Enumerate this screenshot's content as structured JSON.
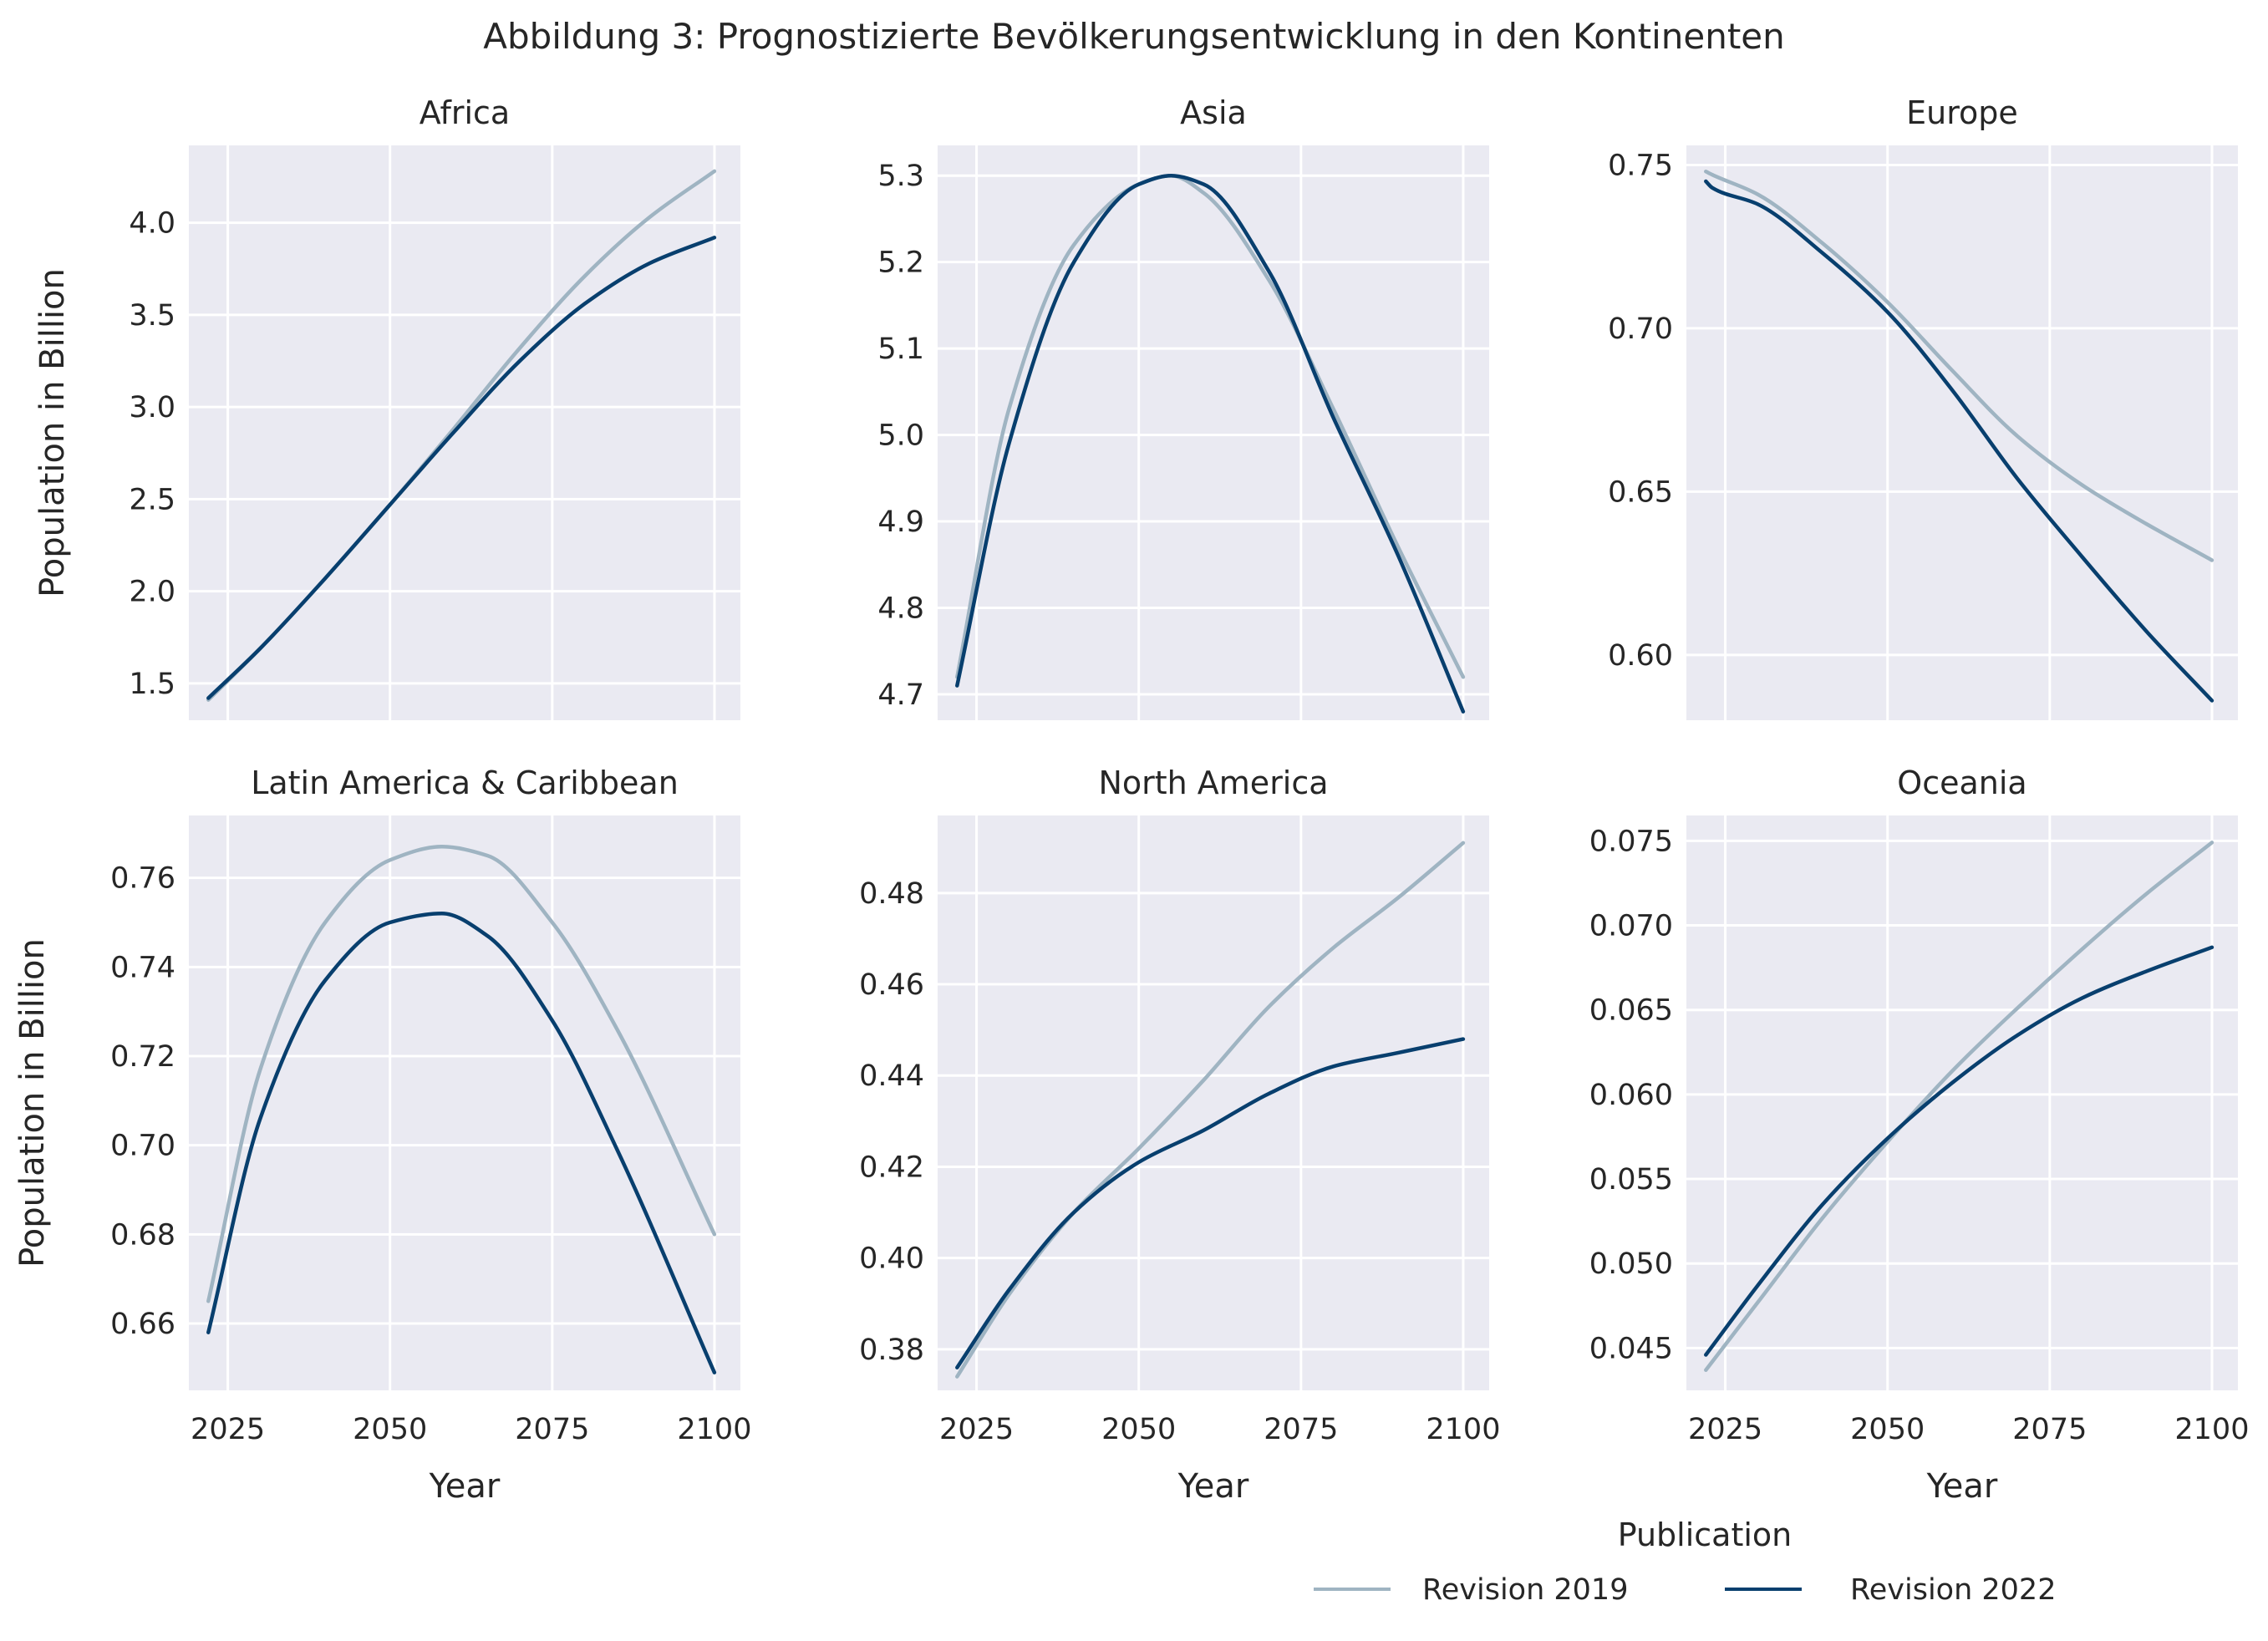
{
  "title": "Abbildung 3: Prognostizierte Bevölkerungsentwicklung in den Kontinenten",
  "colors": {
    "panel_bg": "#EAEAF2",
    "grid": "#FFFFFF",
    "revision_2019": "#9FB4C2",
    "revision_2022": "#083F6E",
    "text": "#262626"
  },
  "legend": {
    "title": "Publication",
    "entries": [
      "Revision 2019",
      "Revision 2022"
    ]
  },
  "chart_data": [
    {
      "type": "line",
      "title": "Africa",
      "xlabel": "",
      "ylabel": "Population in Billion",
      "xlim": [
        2019,
        2104
      ],
      "ylim": [
        1.3,
        4.42
      ],
      "xticks": [
        2025,
        2050,
        2075,
        2100
      ],
      "yticks": [
        1.5,
        2.0,
        2.5,
        3.0,
        3.5,
        4.0
      ],
      "ytick_labels": [
        "1.5",
        "2.0",
        "2.5",
        "3.0",
        "3.5",
        "4.0"
      ],
      "x": [
        2022,
        2030,
        2040,
        2050,
        2060,
        2070,
        2080,
        2090,
        2100
      ],
      "series": [
        {
          "name": "Revision 2019",
          "values": [
            1.41,
            1.69,
            2.07,
            2.47,
            2.89,
            3.32,
            3.71,
            4.03,
            4.28
          ]
        },
        {
          "name": "Revision 2022",
          "values": [
            1.42,
            1.69,
            2.07,
            2.47,
            2.87,
            3.25,
            3.56,
            3.78,
            3.92
          ]
        }
      ]
    },
    {
      "type": "line",
      "title": "Asia",
      "xlabel": "",
      "ylabel": "",
      "xlim": [
        2019,
        2104
      ],
      "ylim": [
        4.67,
        5.335
      ],
      "xticks": [
        2025,
        2050,
        2075,
        2100
      ],
      "yticks": [
        4.7,
        4.8,
        4.9,
        5.0,
        5.1,
        5.2,
        5.3
      ],
      "ytick_labels": [
        "4.7",
        "4.8",
        "4.9",
        "5.0",
        "5.1",
        "5.2",
        "5.3"
      ],
      "x": [
        2022,
        2030,
        2040,
        2050,
        2055,
        2060,
        2070,
        2080,
        2090,
        2100
      ],
      "series": [
        {
          "name": "Revision 2019",
          "values": [
            4.72,
            5.03,
            5.22,
            5.29,
            5.3,
            5.28,
            5.18,
            5.03,
            4.87,
            4.72
          ]
        },
        {
          "name": "Revision 2022",
          "values": [
            4.71,
            4.99,
            5.2,
            5.29,
            5.3,
            5.29,
            5.19,
            5.02,
            4.86,
            4.68
          ]
        }
      ]
    },
    {
      "type": "line",
      "title": "Europe",
      "xlabel": "",
      "ylabel": "",
      "xlim": [
        2019,
        2104
      ],
      "ylim": [
        0.58,
        0.756
      ],
      "xticks": [
        2025,
        2050,
        2075,
        2100
      ],
      "yticks": [
        0.6,
        0.65,
        0.7,
        0.75
      ],
      "ytick_labels": [
        "0.60",
        "0.65",
        "0.70",
        "0.75"
      ],
      "x": [
        2022,
        2023,
        2030,
        2040,
        2050,
        2060,
        2070,
        2080,
        2090,
        2100
      ],
      "series": [
        {
          "name": "Revision 2019",
          "values": [
            0.748,
            0.747,
            0.741,
            0.726,
            0.708,
            0.687,
            0.667,
            0.652,
            0.64,
            0.629
          ]
        },
        {
          "name": "Revision 2022",
          "values": [
            0.745,
            0.743,
            0.738,
            0.723,
            0.705,
            0.681,
            0.654,
            0.63,
            0.607,
            0.586
          ]
        }
      ]
    },
    {
      "type": "line",
      "title": "Latin America & Caribbean",
      "xlabel": "Year",
      "ylabel": "Population in Billion",
      "xlim": [
        2019,
        2104
      ],
      "ylim": [
        0.645,
        0.774
      ],
      "xticks": [
        2025,
        2050,
        2075,
        2100
      ],
      "yticks": [
        0.66,
        0.68,
        0.7,
        0.72,
        0.74,
        0.76
      ],
      "ytick_labels": [
        "0.66",
        "0.68",
        "0.70",
        "0.72",
        "0.74",
        "0.76"
      ],
      "xtick_labels": [
        "2025",
        "2050",
        "2075",
        "2100"
      ],
      "x": [
        2022,
        2030,
        2040,
        2050,
        2058,
        2065,
        2075,
        2085,
        2100
      ],
      "series": [
        {
          "name": "Revision 2019",
          "values": [
            0.665,
            0.717,
            0.75,
            0.764,
            0.767,
            0.765,
            0.75,
            0.726,
            0.68
          ]
        },
        {
          "name": "Revision 2022",
          "values": [
            0.658,
            0.706,
            0.737,
            0.75,
            0.752,
            0.747,
            0.728,
            0.699,
            0.649
          ]
        }
      ]
    },
    {
      "type": "line",
      "title": "North America",
      "xlabel": "Year",
      "ylabel": "",
      "xlim": [
        2019,
        2104
      ],
      "ylim": [
        0.371,
        0.497
      ],
      "xticks": [
        2025,
        2050,
        2075,
        2100
      ],
      "yticks": [
        0.38,
        0.4,
        0.42,
        0.44,
        0.46,
        0.48
      ],
      "ytick_labels": [
        "0.38",
        "0.40",
        "0.42",
        "0.44",
        "0.46",
        "0.48"
      ],
      "xtick_labels": [
        "2025",
        "2050",
        "2075",
        "2100"
      ],
      "x": [
        2022,
        2030,
        2040,
        2050,
        2060,
        2070,
        2080,
        2090,
        2100
      ],
      "series": [
        {
          "name": "Revision 2019",
          "values": [
            0.374,
            0.392,
            0.41,
            0.424,
            0.439,
            0.455,
            0.468,
            0.479,
            0.491
          ]
        },
        {
          "name": "Revision 2022",
          "values": [
            0.376,
            0.393,
            0.41,
            0.421,
            0.428,
            0.436,
            0.442,
            0.445,
            0.448
          ]
        }
      ]
    },
    {
      "type": "line",
      "title": "Oceania",
      "xlabel": "Year",
      "ylabel": "",
      "xlim": [
        2019,
        2104
      ],
      "ylim": [
        0.0425,
        0.0765
      ],
      "xticks": [
        2025,
        2050,
        2075,
        2100
      ],
      "yticks": [
        0.045,
        0.05,
        0.055,
        0.06,
        0.065,
        0.07,
        0.075
      ],
      "ytick_labels": [
        "0.045",
        "0.050",
        "0.055",
        "0.060",
        "0.065",
        "0.070",
        "0.075"
      ],
      "xtick_labels": [
        "2025",
        "2050",
        "2075",
        "2100"
      ],
      "x": [
        2022,
        2030,
        2040,
        2050,
        2060,
        2070,
        2080,
        2090,
        2100
      ],
      "series": [
        {
          "name": "Revision 2019",
          "values": [
            0.0437,
            0.0477,
            0.0527,
            0.0572,
            0.0614,
            0.0651,
            0.0686,
            0.0719,
            0.0749
          ]
        },
        {
          "name": "Revision 2022",
          "values": [
            0.0446,
            0.0487,
            0.0535,
            0.0574,
            0.0607,
            0.0635,
            0.0657,
            0.0673,
            0.0687
          ]
        }
      ]
    }
  ]
}
